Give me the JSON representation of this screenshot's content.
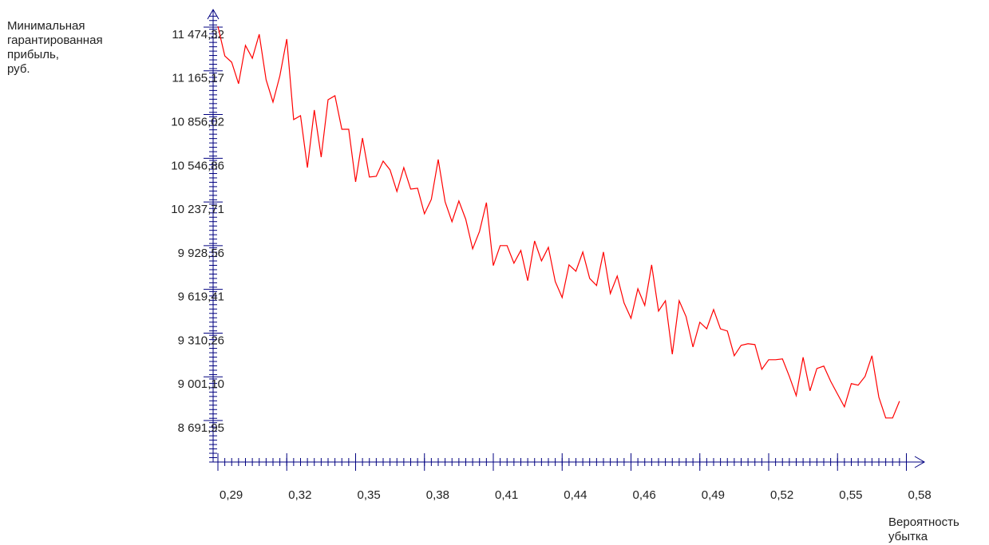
{
  "chart_data": {
    "type": "line",
    "ylabel": [
      "Минимальная",
      "гарантированная",
      "прибыль,",
      "руб."
    ],
    "xlabel": [
      "Вероятность",
      "убытка"
    ],
    "axis_color": "#000080",
    "xlim": [
      0.28545,
      0.5902
    ],
    "ylim": [
      8398.5,
      11598.5
    ],
    "xticks": [
      {
        "value": 0.2875,
        "label": "0,29"
      },
      {
        "value": 0.317,
        "label": "0,32"
      },
      {
        "value": 0.3465,
        "label": "0,35"
      },
      {
        "value": 0.376,
        "label": "0,38"
      },
      {
        "value": 0.4055,
        "label": "0,41"
      },
      {
        "value": 0.435,
        "label": "0,44"
      },
      {
        "value": 0.4645,
        "label": "0,46"
      },
      {
        "value": 0.494,
        "label": "0,49"
      },
      {
        "value": 0.5235,
        "label": "0,52"
      },
      {
        "value": 0.553,
        "label": "0,55"
      },
      {
        "value": 0.5825,
        "label": "0,58"
      }
    ],
    "yticks": [
      {
        "value": 11474.32,
        "label": "11 474,32"
      },
      {
        "value": 11165.17,
        "label": "11 165,17"
      },
      {
        "value": 10856.02,
        "label": "10 856,02"
      },
      {
        "value": 10546.86,
        "label": "10 546,86"
      },
      {
        "value": 10237.71,
        "label": "10 237,71"
      },
      {
        "value": 9928.56,
        "label": "9 928,56"
      },
      {
        "value": 9619.41,
        "label": "9 619,41"
      },
      {
        "value": 9310.26,
        "label": "9 310,26"
      },
      {
        "value": 9001.1,
        "label": "9 001,10"
      },
      {
        "value": 8691.95,
        "label": "8 691,95"
      }
    ],
    "x": [
      0.2875,
      0.29045,
      0.2934,
      0.29635,
      0.2993,
      0.30225,
      0.3052,
      0.30815,
      0.3111,
      0.31405,
      0.317,
      0.31995,
      0.3229,
      0.32585,
      0.3288,
      0.33175,
      0.3347,
      0.33765,
      0.3406,
      0.34355,
      0.3465,
      0.34945,
      0.3524,
      0.35535,
      0.3583,
      0.36125,
      0.3642,
      0.36715,
      0.3701,
      0.37305,
      0.376,
      0.37895,
      0.3819,
      0.38485,
      0.3878,
      0.39075,
      0.3937,
      0.39665,
      0.3996,
      0.40255,
      0.4055,
      0.40845,
      0.4114,
      0.41435,
      0.4173,
      0.42025,
      0.4232,
      0.42615,
      0.4291,
      0.43205,
      0.435,
      0.43795,
      0.4409,
      0.44385,
      0.4468,
      0.44975,
      0.4527,
      0.45565,
      0.4586,
      0.46155,
      0.4645,
      0.46745,
      0.4704,
      0.47335,
      0.4763,
      0.47925,
      0.4822,
      0.48515,
      0.4881,
      0.49105,
      0.494,
      0.49695,
      0.4999,
      0.50285,
      0.5058,
      0.50875,
      0.5117,
      0.51465,
      0.5176,
      0.52055,
      0.5235,
      0.52645,
      0.5294,
      0.53235,
      0.5353,
      0.53825,
      0.5412,
      0.54415,
      0.5471,
      0.55005,
      0.553,
      0.55595,
      0.5589,
      0.56185,
      0.5648,
      0.56775,
      0.5707,
      0.57365,
      0.5766,
      0.57955
    ],
    "series": [
      {
        "color": "#ff0000",
        "values": [
          11480,
          11271,
          11226,
          11074,
          11345,
          11254,
          11424,
          11102,
          10944,
          11130,
          11390,
          10820,
          10848,
          10481,
          10888,
          10555,
          10961,
          10989,
          10752,
          10752,
          10380,
          10690,
          10414,
          10419,
          10527,
          10465,
          10312,
          10481,
          10329,
          10335,
          10154,
          10256,
          10538,
          10239,
          10098,
          10245,
          10115,
          9906,
          10030,
          10233,
          9788,
          9929,
          9929,
          9805,
          9895,
          9681,
          9962,
          9821,
          9917,
          9675,
          9562,
          9793,
          9748,
          9884,
          9697,
          9647,
          9884,
          9590,
          9714,
          9523,
          9415,
          9624,
          9506,
          9793,
          9466,
          9539,
          9161,
          9539,
          9427,
          9212,
          9387,
          9341,
          9477,
          9340,
          9325,
          9150,
          9224,
          9235,
          9229,
          9054,
          9122,
          9122,
          9128,
          9004,
          8868,
          9139,
          8902,
          9060,
          9077,
          8970,
          8879,
          8789,
          8953,
          8942,
          9004,
          9150,
          8857,
          8710,
          8710,
          8829
        ]
      }
    ]
  }
}
